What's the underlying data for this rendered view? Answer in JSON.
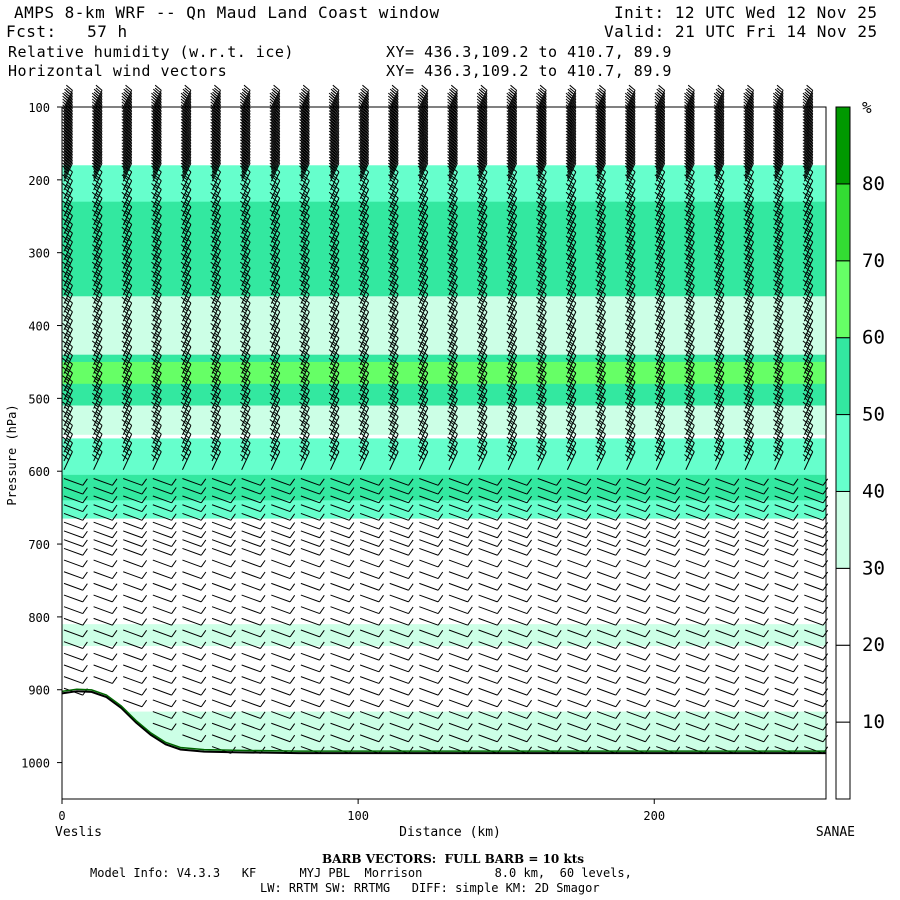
{
  "header": {
    "title": "AMPS 8-km WRF -- Qn Maud Land Coast window",
    "fcst": "Fcst:   57 h",
    "field1": "Relative humidity (w.r.t. ice)",
    "field2": "Horizontal wind vectors",
    "init": "Init: 12 UTC Wed 12 Nov 25",
    "valid": "Valid: 21 UTC Fri 14 Nov 25",
    "xy1": "XY= 436.3,109.2 to 410.7, 89.9",
    "xy2": "XY= 436.3,109.2 to 410.7, 89.9"
  },
  "footer": {
    "barb_note": "BARB VECTORS:  FULL BARB = 10 kts",
    "model_info": "Model Info: V4.3.3   KF      MYJ PBL  Morrison          8.0 km,  60 levels,",
    "physics": "LW: RRTM SW: RRTMG   DIFF: simple KM: 2D Smagor"
  },
  "chart_data": {
    "type": "cross-section",
    "title": "Relative humidity (w.r.t. ice) and horizontal wind vectors",
    "xlabel": "Distance (km)",
    "ylabel": "Pressure (hPa)",
    "x_start_label": "Veslis",
    "x_end_label": "SANAE",
    "xlim": [
      0,
      258
    ],
    "ylim": [
      1050,
      100
    ],
    "xticks": [
      0,
      100,
      200
    ],
    "yticks": [
      100,
      200,
      300,
      400,
      500,
      600,
      700,
      800,
      900,
      1000
    ],
    "colorbar": {
      "unit": "%",
      "levels": [
        10,
        20,
        30,
        40,
        50,
        60,
        70,
        80
      ],
      "colors": [
        "#ffffff",
        "#ffffff",
        "#ffffff",
        "#ccffe6",
        "#66ffcc",
        "#33e8a0",
        "#66ff66",
        "#33dd33",
        "#009900"
      ]
    },
    "rh_bands": [
      {
        "p_top": 180,
        "p_bot": 280,
        "rh": 45
      },
      {
        "p_top": 230,
        "p_bot": 360,
        "rh": 52
      },
      {
        "p_top": 360,
        "p_bot": 440,
        "rh": 38
      },
      {
        "p_top": 440,
        "p_bot": 510,
        "rh": 52
      },
      {
        "p_top": 450,
        "p_bot": 480,
        "rh": 62
      },
      {
        "p_top": 510,
        "p_bot": 550,
        "rh": 35
      },
      {
        "p_top": 555,
        "p_bot": 665,
        "rh": 48
      },
      {
        "p_top": 605,
        "p_bot": 640,
        "rh": 58
      },
      {
        "p_top": 930,
        "p_bot": 990,
        "rh": 35
      },
      {
        "p_top": 810,
        "p_bot": 840,
        "rh": 32
      }
    ],
    "terrain": [
      [
        0,
        905
      ],
      [
        5,
        902
      ],
      [
        10,
        903
      ],
      [
        15,
        910
      ],
      [
        20,
        925
      ],
      [
        25,
        945
      ],
      [
        30,
        962
      ],
      [
        35,
        975
      ],
      [
        40,
        982
      ],
      [
        48,
        985
      ],
      [
        60,
        986
      ],
      [
        80,
        987
      ],
      [
        120,
        987
      ],
      [
        200,
        987
      ],
      [
        258,
        987
      ]
    ],
    "barb_spacing_km": 10,
    "barb_note": "FULL BARB = 10 kts"
  }
}
